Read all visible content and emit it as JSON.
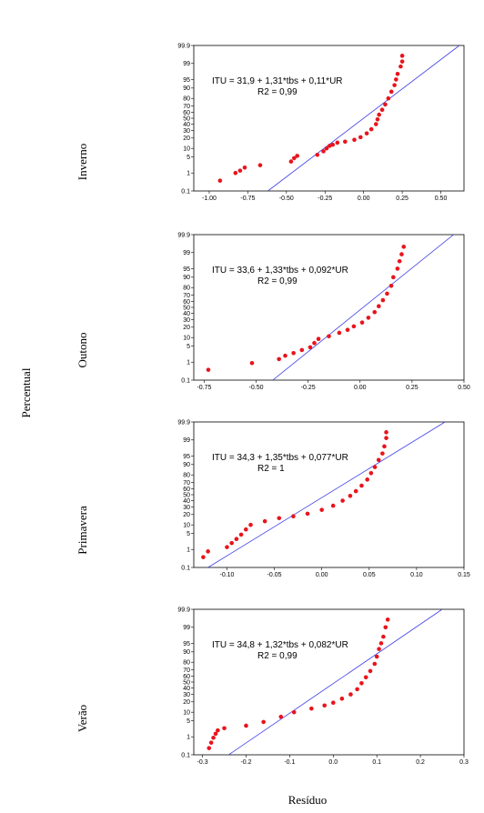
{
  "figure": {
    "ylabel": "Percentual",
    "xlabel": "Resíduo"
  },
  "chart_data": [
    {
      "type": "scatter",
      "season": "Inverno",
      "equation": "ITU = 31,9 + 1,31*tbs + 0,11*UR",
      "r2": "R2 = 0,99",
      "xlim": [
        -1.1,
        0.65
      ],
      "x_ticks": [
        -1.0,
        -0.75,
        -0.5,
        -0.25,
        0.0,
        0.25,
        0.5
      ],
      "x_tick_labels": [
        "-1.00",
        "-0.75",
        "-0.50",
        "-0.25",
        "0.00",
        "0.25",
        "0.50"
      ],
      "y_ticks": [
        0.1,
        1,
        5,
        10,
        20,
        30,
        40,
        50,
        60,
        70,
        80,
        90,
        95,
        99,
        99.9
      ],
      "y_tick_labels": [
        "0.1",
        "1",
        "5",
        "10",
        "20",
        "30",
        "40",
        "50",
        "60",
        "70",
        "80",
        "90",
        "95",
        "99",
        "99.9"
      ],
      "fit_line": {
        "x": [
          -0.62,
          0.62
        ],
        "p": [
          0.1,
          99.9
        ]
      },
      "point_color": "#e8141c",
      "line_color": "#3a3ae6",
      "points": [
        [
          -0.93,
          0.4
        ],
        [
          -0.83,
          1.0
        ],
        [
          -0.8,
          1.3
        ],
        [
          -0.77,
          1.8
        ],
        [
          -0.67,
          2.3
        ],
        [
          -0.47,
          3.3
        ],
        [
          -0.45,
          4.5
        ],
        [
          -0.43,
          5.5
        ],
        [
          -0.3,
          6
        ],
        [
          -0.26,
          8
        ],
        [
          -0.24,
          10
        ],
        [
          -0.22,
          12
        ],
        [
          -0.2,
          13
        ],
        [
          -0.17,
          15
        ],
        [
          -0.12,
          16
        ],
        [
          -0.06,
          18
        ],
        [
          -0.02,
          21
        ],
        [
          0.02,
          26
        ],
        [
          0.05,
          32
        ],
        [
          0.08,
          40
        ],
        [
          0.09,
          48
        ],
        [
          0.1,
          56
        ],
        [
          0.12,
          64
        ],
        [
          0.14,
          72
        ],
        [
          0.16,
          80
        ],
        [
          0.18,
          87
        ],
        [
          0.2,
          92
        ],
        [
          0.21,
          95
        ],
        [
          0.22,
          97
        ],
        [
          0.24,
          98.6
        ],
        [
          0.25,
          99.2
        ],
        [
          0.25,
          99.6
        ]
      ]
    },
    {
      "type": "scatter",
      "season": "Outono",
      "equation": "ITU = 33,6 + 1,33*tbs + 0,092*UR",
      "r2": "R2 = 0,99",
      "xlim": [
        -0.8,
        0.5
      ],
      "x_ticks": [
        -0.75,
        -0.5,
        -0.25,
        0.0,
        0.25,
        0.5
      ],
      "x_tick_labels": [
        "-0.75",
        "-0.50",
        "-0.25",
        "0.00",
        "0.25",
        "0.50"
      ],
      "y_ticks": [
        0.1,
        1,
        5,
        10,
        20,
        30,
        40,
        50,
        60,
        70,
        80,
        90,
        95,
        99,
        99.9
      ],
      "y_tick_labels": [
        "0.1",
        "1",
        "5",
        "10",
        "20",
        "30",
        "40",
        "50",
        "60",
        "70",
        "80",
        "90",
        "95",
        "99",
        "99.9"
      ],
      "fit_line": {
        "x": [
          -0.42,
          0.45
        ],
        "p": [
          0.1,
          99.9
        ]
      },
      "point_color": "#e8141c",
      "line_color": "#3a3ae6",
      "points": [
        [
          -0.73,
          0.4
        ],
        [
          -0.52,
          0.9
        ],
        [
          -0.39,
          1.4
        ],
        [
          -0.36,
          2.0
        ],
        [
          -0.32,
          2.6
        ],
        [
          -0.28,
          3.5
        ],
        [
          -0.24,
          4.5
        ],
        [
          -0.22,
          6.5
        ],
        [
          -0.2,
          9
        ],
        [
          -0.15,
          11
        ],
        [
          -0.1,
          14
        ],
        [
          -0.06,
          17
        ],
        [
          -0.03,
          21
        ],
        [
          0.01,
          26
        ],
        [
          0.04,
          33
        ],
        [
          0.07,
          42
        ],
        [
          0.09,
          52
        ],
        [
          0.11,
          62
        ],
        [
          0.13,
          72
        ],
        [
          0.15,
          82
        ],
        [
          0.16,
          90
        ],
        [
          0.18,
          95
        ],
        [
          0.19,
          97.5
        ],
        [
          0.2,
          98.8
        ],
        [
          0.21,
          99.5
        ]
      ]
    },
    {
      "type": "scatter",
      "season": "Primavera",
      "equation": "ITU = 34,3 + 1,35*tbs + 0,077*UR",
      "r2": "R2 = 1",
      "xlim": [
        -0.135,
        0.15
      ],
      "x_ticks": [
        -0.1,
        -0.05,
        0.0,
        0.05,
        0.1,
        0.15
      ],
      "x_tick_labels": [
        "-0.10",
        "-0.05",
        "0.00",
        "0.05",
        "0.10",
        "0.15"
      ],
      "y_ticks": [
        0.1,
        1,
        5,
        10,
        20,
        30,
        40,
        50,
        60,
        70,
        80,
        90,
        95,
        99,
        99.9
      ],
      "y_tick_labels": [
        "0.1",
        "1",
        "5",
        "10",
        "20",
        "30",
        "40",
        "50",
        "60",
        "70",
        "80",
        "90",
        "95",
        "99",
        "99.9"
      ],
      "fit_line": {
        "x": [
          -0.12,
          0.13
        ],
        "p": [
          0.1,
          99.9
        ]
      },
      "point_color": "#e8141c",
      "line_color": "#3a3ae6",
      "points": [
        [
          -0.125,
          0.4
        ],
        [
          -0.12,
          0.8
        ],
        [
          -0.1,
          1.3
        ],
        [
          -0.095,
          2.0
        ],
        [
          -0.09,
          3.0
        ],
        [
          -0.085,
          4.5
        ],
        [
          -0.08,
          7
        ],
        [
          -0.075,
          10
        ],
        [
          -0.06,
          13
        ],
        [
          -0.045,
          16
        ],
        [
          -0.03,
          18
        ],
        [
          -0.015,
          21
        ],
        [
          0.0,
          26
        ],
        [
          0.012,
          32
        ],
        [
          0.022,
          40
        ],
        [
          0.03,
          48
        ],
        [
          0.036,
          56
        ],
        [
          0.042,
          65
        ],
        [
          0.048,
          74
        ],
        [
          0.052,
          82
        ],
        [
          0.056,
          88
        ],
        [
          0.06,
          93
        ],
        [
          0.064,
          96
        ],
        [
          0.066,
          98
        ],
        [
          0.068,
          99.2
        ],
        [
          0.068,
          99.6
        ]
      ]
    },
    {
      "type": "scatter",
      "season": "Verão",
      "equation": "ITU = 34,8 + 1,32*tbs + 0,082*UR",
      "r2": "R2 = 0,99",
      "xlim": [
        -0.32,
        0.3
      ],
      "x_ticks": [
        -0.3,
        -0.2,
        -0.1,
        0.0,
        0.1,
        0.2,
        0.3
      ],
      "x_tick_labels": [
        "-0.3",
        "-0.2",
        "-0.1",
        "0.0",
        "0.1",
        "0.2",
        "0.3"
      ],
      "y_ticks": [
        0.1,
        1,
        5,
        10,
        20,
        30,
        40,
        50,
        60,
        70,
        80,
        90,
        95,
        99,
        99.9
      ],
      "y_tick_labels": [
        "0.1",
        "1",
        "5",
        "10",
        "20",
        "30",
        "40",
        "50",
        "60",
        "70",
        "80",
        "90",
        "95",
        "99",
        "99.9"
      ],
      "fit_line": {
        "x": [
          -0.24,
          0.25
        ],
        "p": [
          0.1,
          99.9
        ]
      },
      "point_color": "#e8141c",
      "line_color": "#3a3ae6",
      "points": [
        [
          -0.285,
          0.25
        ],
        [
          -0.28,
          0.5
        ],
        [
          -0.275,
          0.9
        ],
        [
          -0.27,
          1.4
        ],
        [
          -0.265,
          2.0
        ],
        [
          -0.25,
          2.5
        ],
        [
          -0.2,
          3.2
        ],
        [
          -0.16,
          4.5
        ],
        [
          -0.12,
          7
        ],
        [
          -0.09,
          10
        ],
        [
          -0.05,
          13
        ],
        [
          -0.02,
          16
        ],
        [
          0.0,
          19
        ],
        [
          0.02,
          24
        ],
        [
          0.04,
          30
        ],
        [
          0.055,
          38
        ],
        [
          0.065,
          48
        ],
        [
          0.075,
          58
        ],
        [
          0.085,
          68
        ],
        [
          0.095,
          78
        ],
        [
          0.1,
          86
        ],
        [
          0.105,
          92
        ],
        [
          0.11,
          95
        ],
        [
          0.115,
          97.3
        ],
        [
          0.12,
          99
        ],
        [
          0.125,
          99.6
        ]
      ]
    }
  ]
}
